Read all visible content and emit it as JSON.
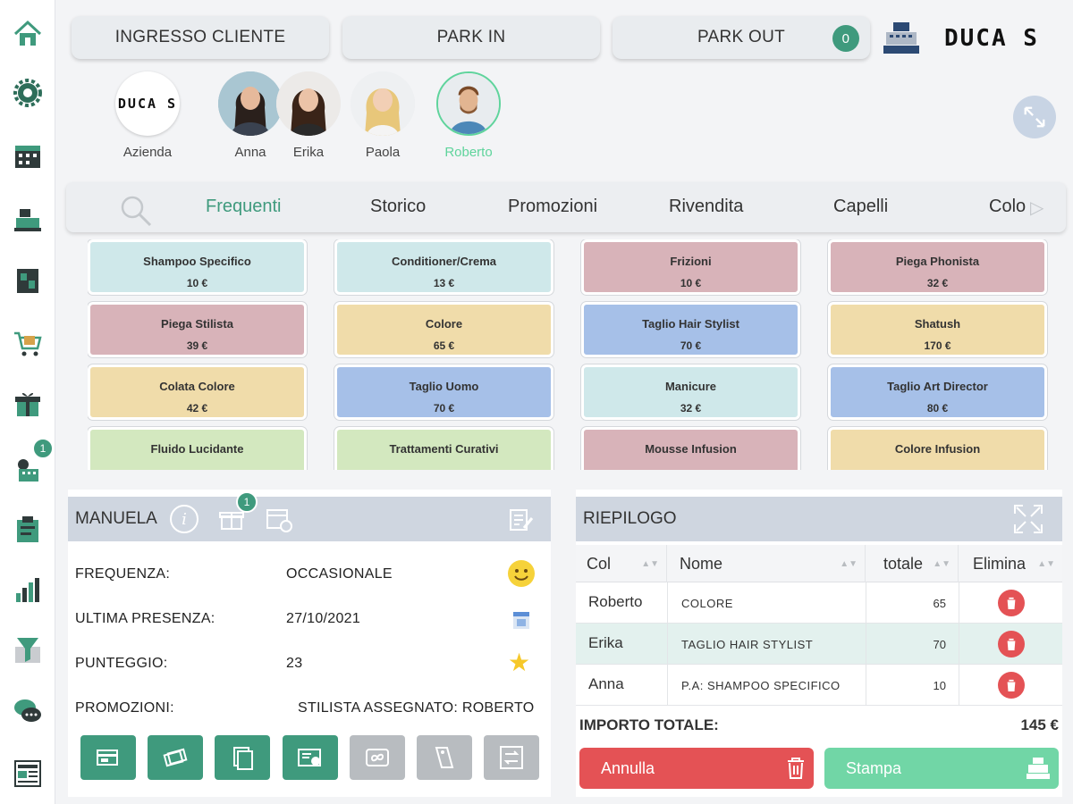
{
  "top_buttons": {
    "ingresso": "INGRESSO CLIENTE",
    "park_in": "PARK IN",
    "park_out": "PARK OUT",
    "park_out_count": "0"
  },
  "brand": {
    "logo": "DUCA S"
  },
  "staff": [
    {
      "name": "Azienda",
      "logo": "DUCA S"
    },
    {
      "name": "Anna"
    },
    {
      "name": "Erika"
    },
    {
      "name": "Paola"
    },
    {
      "name": "Roberto",
      "selected": true
    }
  ],
  "tabs": [
    "Frequenti",
    "Storico",
    "Promozioni",
    "Rivendita",
    "Capelli",
    "Colo"
  ],
  "services": [
    {
      "name": "Shampoo Specifico",
      "price": "10 €",
      "color": "#cfe8ea"
    },
    {
      "name": "Conditioner/Crema",
      "price": "13 €",
      "color": "#cfe8ea"
    },
    {
      "name": "Frizioni",
      "price": "10 €",
      "color": "#d8b3b9"
    },
    {
      "name": "Piega Phonista",
      "price": "32 €",
      "color": "#d8b3b9"
    },
    {
      "name": "Piega Stilista",
      "price": "39 €",
      "color": "#d8b3b9"
    },
    {
      "name": "Colore",
      "price": "65 €",
      "color": "#f0dcaa"
    },
    {
      "name": "Taglio Hair Stylist",
      "price": "70 €",
      "color": "#a6c0e8"
    },
    {
      "name": "Shatush",
      "price": "170 €",
      "color": "#f0dcaa"
    },
    {
      "name": "Colata Colore",
      "price": "42 €",
      "color": "#f0dcaa"
    },
    {
      "name": "Taglio Uomo",
      "price": "70 €",
      "color": "#a6c0e8"
    },
    {
      "name": "Manicure",
      "price": "32 €",
      "color": "#cfe8ea"
    },
    {
      "name": "Taglio Art Director",
      "price": "80 €",
      "color": "#a6c0e8"
    },
    {
      "name": "Fluido Lucidante",
      "price": "",
      "color": "#d3e8bf"
    },
    {
      "name": "Trattamenti Curativi",
      "price": "",
      "color": "#d3e8bf"
    },
    {
      "name": "Mousse Infusion",
      "price": "",
      "color": "#d8b3b9"
    },
    {
      "name": "Colore Infusion",
      "price": "",
      "color": "#f0dcaa"
    }
  ],
  "client": {
    "name": "MANUELA",
    "gift_badge": "1",
    "frequency_label": "FREQUENZA:",
    "frequency_value": "OCCASIONALE",
    "last_label": "ULTIMA PRESENZA:",
    "last_value": "27/10/2021",
    "score_label": "PUNTEGGIO:",
    "score_value": "23",
    "promo_label": "PROMOZIONI:",
    "stylist_value": "STILISTA ASSEGNATO: ROBERTO"
  },
  "summary": {
    "title": "RIEPILOGO",
    "headers": [
      "Col",
      "Nome",
      "totale",
      "Elimina"
    ],
    "rows": [
      {
        "col": "Roberto",
        "name": "COLORE",
        "total": "65"
      },
      {
        "col": "Erika",
        "name": "TAGLIO HAIR STYLIST",
        "total": "70"
      },
      {
        "col": "Anna",
        "name": "P.A: SHAMPOO SPECIFICO",
        "total": "10"
      }
    ],
    "total_label": "IMPORTO TOTALE:",
    "total_value": "145 €",
    "cancel": "Annulla",
    "print": "Stampa"
  },
  "sidebar_badge": "1",
  "colors": {
    "accent": "#3f9a7d",
    "selected": "#5fd49c",
    "danger": "#e45255",
    "print": "#71d6a6"
  }
}
